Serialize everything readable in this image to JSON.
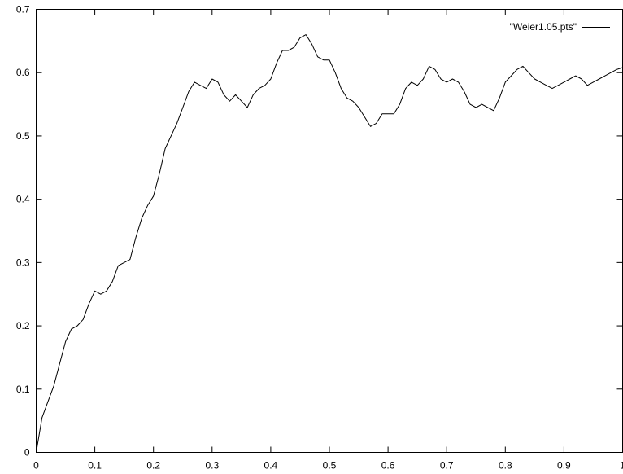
{
  "chart_data": {
    "type": "line",
    "title": "",
    "xlabel": "",
    "ylabel": "",
    "xlim": [
      0,
      1
    ],
    "ylim": [
      0,
      0.7
    ],
    "grid": false,
    "legend_placement": "top-right",
    "x_ticks": [
      0,
      0.1,
      0.2,
      0.3,
      0.4,
      0.5,
      0.6,
      0.7,
      0.8,
      0.9,
      1
    ],
    "x_tick_labels": [
      "0",
      "0.1",
      "0.2",
      "0.3",
      "0.4",
      "0.5",
      "0.6",
      "0.7",
      "0.8",
      "0.9",
      "1"
    ],
    "y_ticks": [
      0,
      0.1,
      0.2,
      0.3,
      0.4,
      0.5,
      0.6,
      0.7
    ],
    "y_tick_labels": [
      "0",
      "0.1",
      "0.2",
      "0.3",
      "0.4",
      "0.5",
      "0.6",
      "0.7"
    ],
    "series": [
      {
        "name": "\"Weier1.05.pts\"",
        "color": "#000000",
        "x": [
          0,
          0.01,
          0.02,
          0.03,
          0.04,
          0.05,
          0.06,
          0.07,
          0.08,
          0.09,
          0.1,
          0.11,
          0.12,
          0.13,
          0.14,
          0.15,
          0.16,
          0.17,
          0.18,
          0.19,
          0.2,
          0.21,
          0.22,
          0.23,
          0.24,
          0.25,
          0.26,
          0.27,
          0.28,
          0.29,
          0.3,
          0.31,
          0.32,
          0.33,
          0.34,
          0.35,
          0.36,
          0.37,
          0.38,
          0.39,
          0.4,
          0.41,
          0.42,
          0.43,
          0.44,
          0.45,
          0.46,
          0.47,
          0.48,
          0.49,
          0.5,
          0.51,
          0.52,
          0.53,
          0.54,
          0.55,
          0.56,
          0.57,
          0.58,
          0.59,
          0.6,
          0.61,
          0.62,
          0.63,
          0.64,
          0.65,
          0.66,
          0.67,
          0.68,
          0.69,
          0.7,
          0.71,
          0.72,
          0.73,
          0.74,
          0.75,
          0.76,
          0.77,
          0.78,
          0.79,
          0.8,
          0.81,
          0.82,
          0.83,
          0.84,
          0.85,
          0.86,
          0.87,
          0.88,
          0.89,
          0.9,
          0.91,
          0.92,
          0.93,
          0.94,
          0.95,
          0.96,
          0.97,
          0.98,
          0.99,
          1.0
        ],
        "y": [
          0,
          0.055,
          0.08,
          0.105,
          0.14,
          0.175,
          0.195,
          0.2,
          0.21,
          0.235,
          0.255,
          0.25,
          0.255,
          0.27,
          0.295,
          0.3,
          0.305,
          0.34,
          0.37,
          0.39,
          0.405,
          0.44,
          0.48,
          0.5,
          0.52,
          0.545,
          0.57,
          0.585,
          0.58,
          0.575,
          0.59,
          0.585,
          0.565,
          0.555,
          0.565,
          0.555,
          0.545,
          0.565,
          0.575,
          0.58,
          0.59,
          0.615,
          0.635,
          0.635,
          0.64,
          0.655,
          0.66,
          0.645,
          0.625,
          0.62,
          0.62,
          0.6,
          0.575,
          0.56,
          0.555,
          0.545,
          0.53,
          0.515,
          0.52,
          0.535,
          0.535,
          0.535,
          0.55,
          0.575,
          0.585,
          0.58,
          0.59,
          0.61,
          0.605,
          0.59,
          0.585,
          0.59,
          0.585,
          0.57,
          0.55,
          0.545,
          0.55,
          0.545,
          0.54,
          0.56,
          0.585,
          0.595,
          0.605,
          0.61,
          0.6,
          0.59,
          0.585,
          0.58,
          0.575,
          0.58,
          0.585,
          0.59,
          0.595,
          0.59,
          0.58,
          0.585,
          0.59,
          0.595,
          0.6,
          0.605,
          0.608
        ]
      }
    ]
  }
}
